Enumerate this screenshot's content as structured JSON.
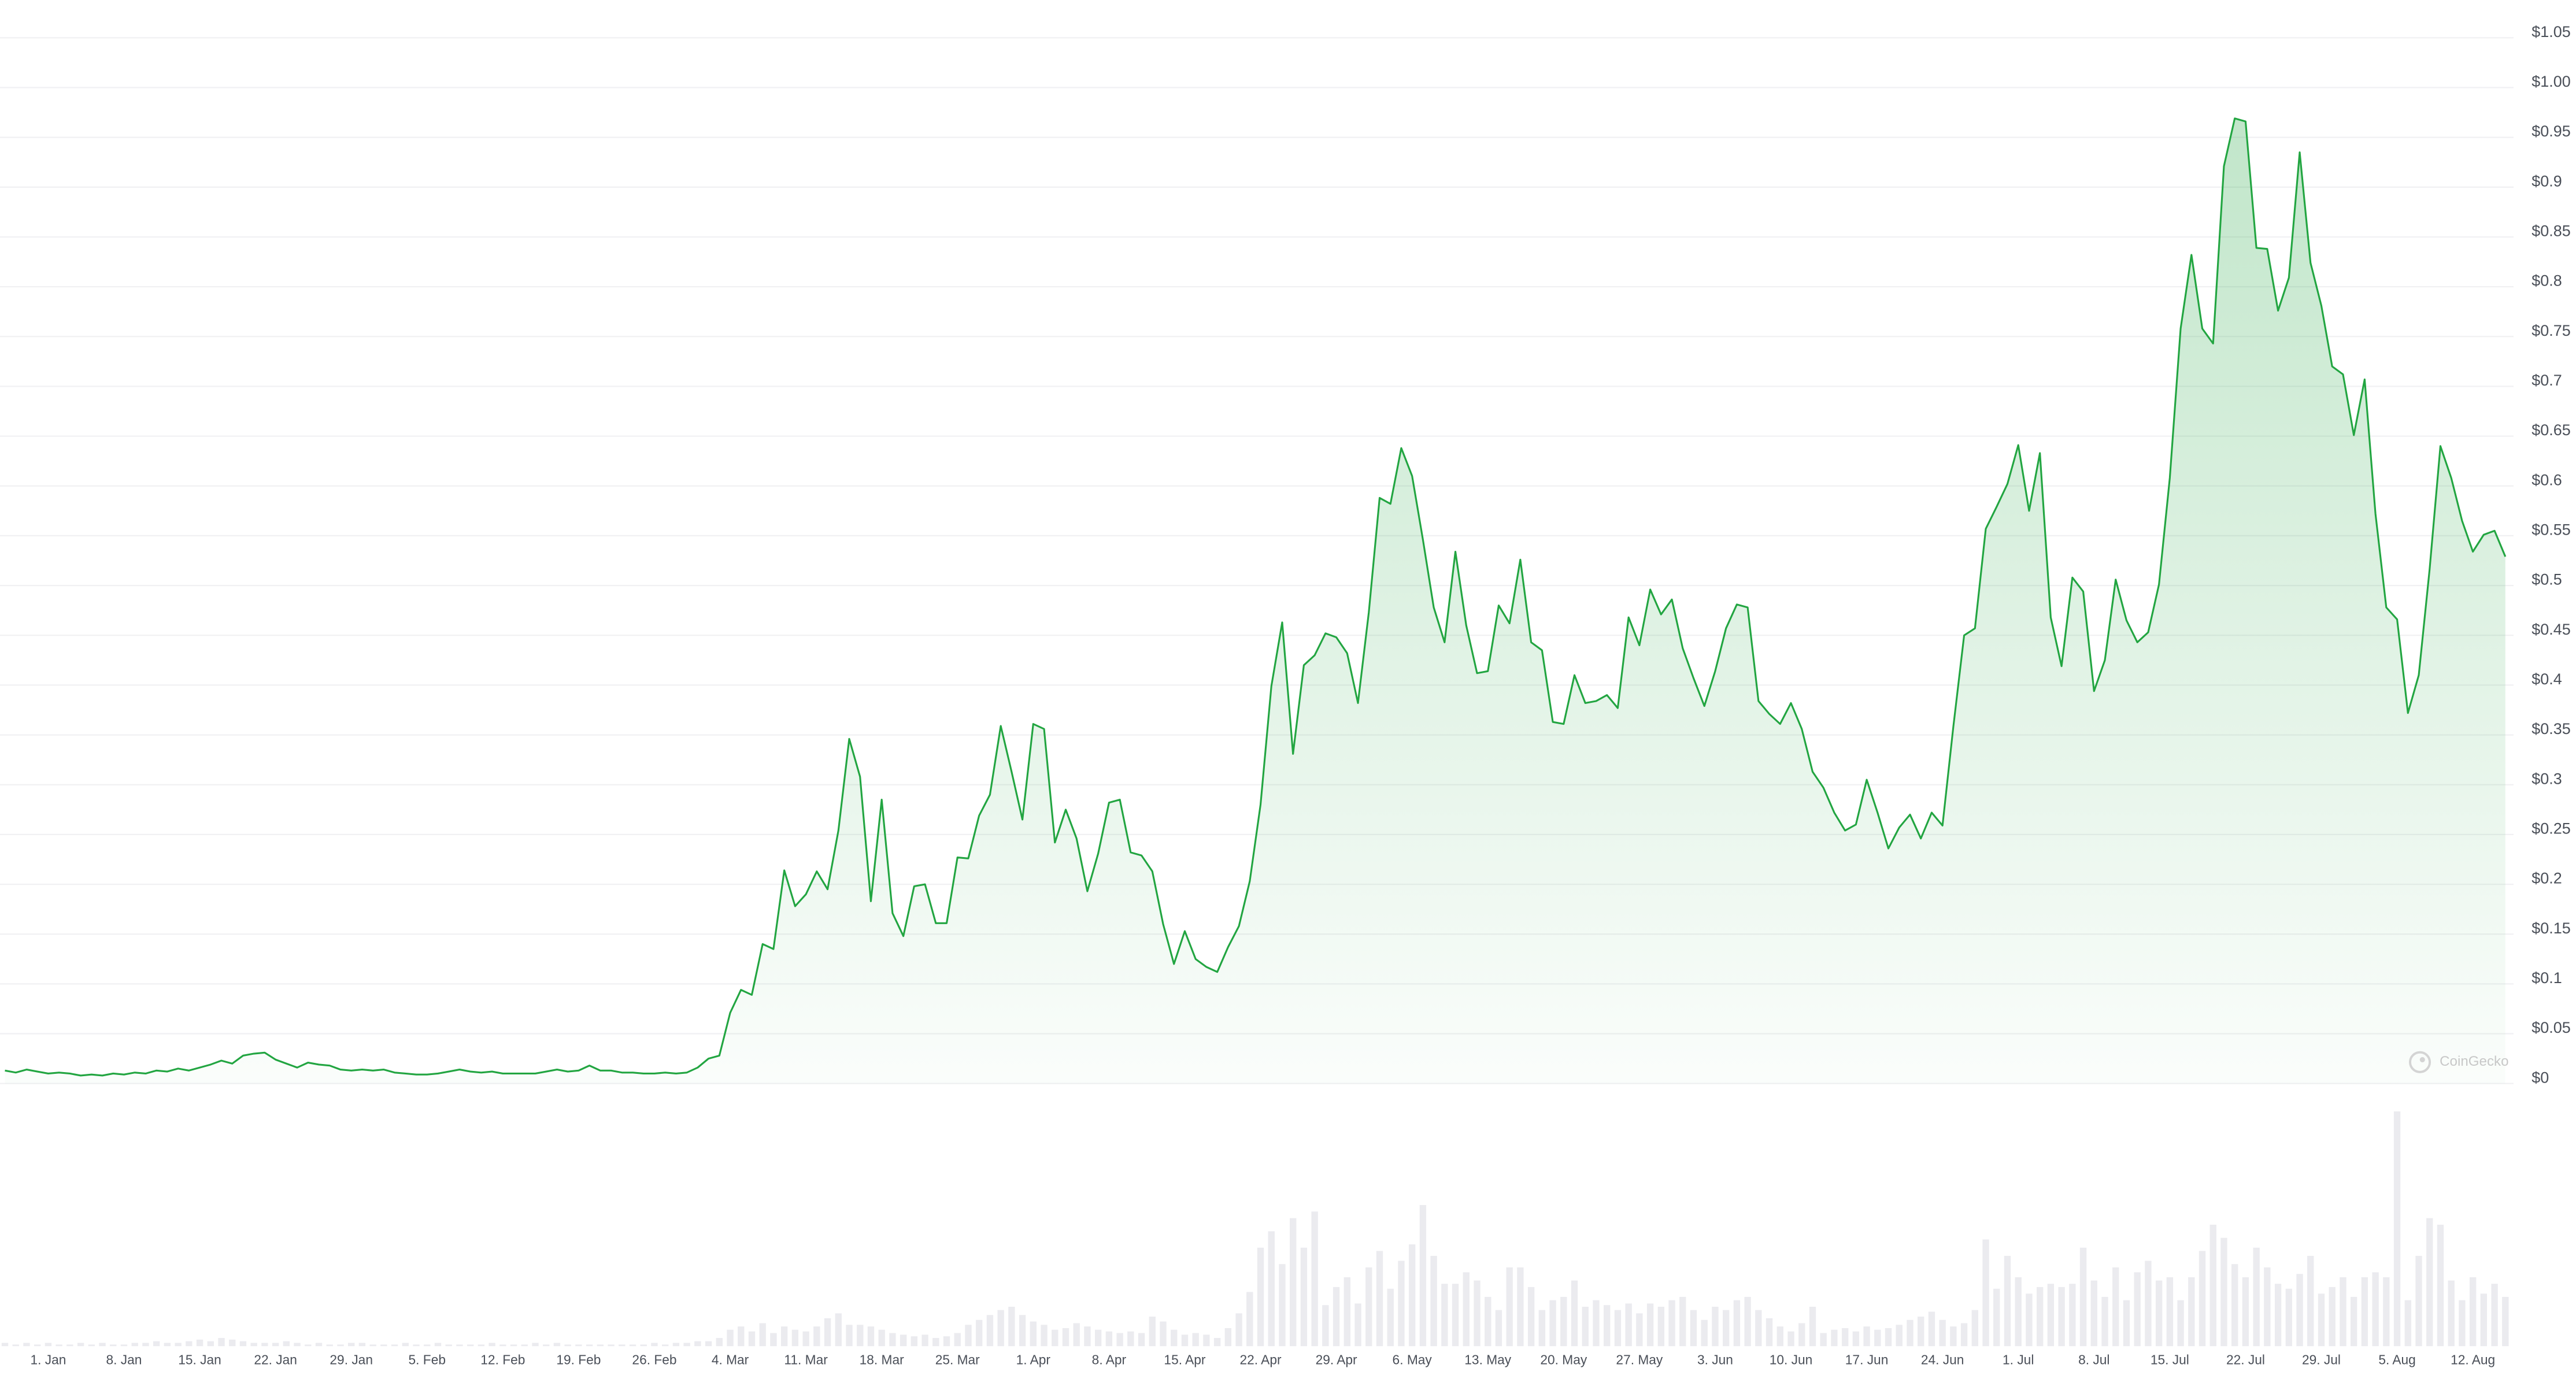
{
  "chart_data": {
    "type": "line",
    "color": "#22a541",
    "volume_color": "#ebebef",
    "grid": true,
    "watermark": "CoinGecko",
    "ylim": [
      0,
      1.05
    ],
    "yticks": [
      {
        "value": 0,
        "label": "$0"
      },
      {
        "value": 0.05,
        "label": "$0.05"
      },
      {
        "value": 0.1,
        "label": "$0.1"
      },
      {
        "value": 0.15,
        "label": "$0.15"
      },
      {
        "value": 0.2,
        "label": "$0.2"
      },
      {
        "value": 0.25,
        "label": "$0.25"
      },
      {
        "value": 0.3,
        "label": "$0.3"
      },
      {
        "value": 0.35,
        "label": "$0.35"
      },
      {
        "value": 0.4,
        "label": "$0.4"
      },
      {
        "value": 0.45,
        "label": "$0.45"
      },
      {
        "value": 0.5,
        "label": "$0.5"
      },
      {
        "value": 0.55,
        "label": "$0.55"
      },
      {
        "value": 0.6,
        "label": "$0.6"
      },
      {
        "value": 0.65,
        "label": "$0.65"
      },
      {
        "value": 0.7,
        "label": "$0.7"
      },
      {
        "value": 0.75,
        "label": "$0.75"
      },
      {
        "value": 0.8,
        "label": "$0.8"
      },
      {
        "value": 0.85,
        "label": "$0.85"
      },
      {
        "value": 0.9,
        "label": "$0.9"
      },
      {
        "value": 0.95,
        "label": "$0.95"
      },
      {
        "value": 1.0,
        "label": "$1.00"
      },
      {
        "value": 1.05,
        "label": "$1.05"
      }
    ],
    "categories": [
      null,
      null,
      null,
      null,
      "1. Jan",
      null,
      null,
      null,
      null,
      null,
      null,
      "8. Jan",
      null,
      null,
      null,
      null,
      null,
      null,
      "15. Jan",
      null,
      null,
      null,
      null,
      null,
      null,
      "22. Jan",
      null,
      null,
      null,
      null,
      null,
      null,
      "29. Jan",
      null,
      null,
      null,
      null,
      null,
      null,
      "5. Feb",
      null,
      null,
      null,
      null,
      null,
      null,
      "12. Feb",
      null,
      null,
      null,
      null,
      null,
      null,
      "19. Feb",
      null,
      null,
      null,
      null,
      null,
      null,
      "26. Feb",
      null,
      null,
      null,
      null,
      null,
      null,
      "4. Mar",
      null,
      null,
      null,
      null,
      null,
      null,
      "11. Mar",
      null,
      null,
      null,
      null,
      null,
      null,
      "18. Mar",
      null,
      null,
      null,
      null,
      null,
      null,
      "25. Mar",
      null,
      null,
      null,
      null,
      null,
      null,
      "1. Apr",
      null,
      null,
      null,
      null,
      null,
      null,
      "8. Apr",
      null,
      null,
      null,
      null,
      null,
      null,
      "15. Apr",
      null,
      null,
      null,
      null,
      null,
      null,
      "22. Apr",
      null,
      null,
      null,
      null,
      null,
      null,
      "29. Apr",
      null,
      null,
      null,
      null,
      null,
      null,
      "6. May",
      null,
      null,
      null,
      null,
      null,
      null,
      "13. May",
      null,
      null,
      null,
      null,
      null,
      null,
      "20. May",
      null,
      null,
      null,
      null,
      null,
      null,
      "27. May",
      null,
      null,
      null,
      null,
      null,
      null,
      "3. Jun",
      null,
      null,
      null,
      null,
      null,
      null,
      "10. Jun",
      null,
      null,
      null,
      null,
      null,
      null,
      "17. Jun",
      null,
      null,
      null,
      null,
      null,
      null,
      "24. Jun",
      null,
      null,
      null,
      null,
      null,
      null,
      "1. Jul",
      null,
      null,
      null,
      null,
      null,
      null,
      "8. Jul",
      null,
      null,
      null,
      null,
      null,
      null,
      "15. Jul",
      null,
      null,
      null,
      null,
      null,
      null,
      "22. Jul",
      null,
      null,
      null,
      null,
      null,
      null,
      "29. Jul",
      null,
      null,
      null,
      null,
      null,
      null,
      "5. Aug",
      null,
      null,
      null,
      null,
      null,
      null,
      "12. Aug",
      null,
      null,
      null
    ],
    "values": [
      0.013,
      0.011,
      0.014,
      0.012,
      0.01,
      0.011,
      0.01,
      0.008,
      0.009,
      0.008,
      0.01,
      0.009,
      0.011,
      0.01,
      0.013,
      0.012,
      0.015,
      0.013,
      0.016,
      0.019,
      0.023,
      0.02,
      0.028,
      0.03,
      0.031,
      0.024,
      0.02,
      0.016,
      0.021,
      0.019,
      0.018,
      0.014,
      0.013,
      0.014,
      0.013,
      0.014,
      0.011,
      0.01,
      0.009,
      0.009,
      0.01,
      0.012,
      0.014,
      0.012,
      0.011,
      0.012,
      0.01,
      0.01,
      0.01,
      0.01,
      0.012,
      0.014,
      0.012,
      0.013,
      0.018,
      0.013,
      0.013,
      0.011,
      0.011,
      0.01,
      0.01,
      0.011,
      0.01,
      0.011,
      0.016,
      0.025,
      0.028,
      0.071,
      0.094,
      0.089,
      0.14,
      0.135,
      0.214,
      0.178,
      0.19,
      0.213,
      0.195,
      0.254,
      0.346,
      0.308,
      0.183,
      0.285,
      0.171,
      0.148,
      0.198,
      0.2,
      0.161,
      0.161,
      0.227,
      0.226,
      0.269,
      0.29,
      0.359,
      0.313,
      0.265,
      0.361,
      0.356,
      0.242,
      0.275,
      0.246,
      0.193,
      0.231,
      0.282,
      0.285,
      0.232,
      0.229,
      0.213,
      0.16,
      0.12,
      0.153,
      0.125,
      0.117,
      0.112,
      0.137,
      0.158,
      0.203,
      0.28,
      0.399,
      0.463,
      0.331,
      0.42,
      0.43,
      0.452,
      0.448,
      0.432,
      0.382,
      0.473,
      0.588,
      0.582,
      0.638,
      0.61,
      0.546,
      0.478,
      0.443,
      0.534,
      0.46,
      0.412,
      0.414,
      0.48,
      0.462,
      0.526,
      0.443,
      0.435,
      0.363,
      0.361,
      0.41,
      0.382,
      0.384,
      0.39,
      0.377,
      0.468,
      0.44,
      0.496,
      0.471,
      0.486,
      0.437,
      0.407,
      0.379,
      0.414,
      0.457,
      0.481,
      0.478,
      0.384,
      0.371,
      0.361,
      0.382,
      0.356,
      0.313,
      0.297,
      0.272,
      0.254,
      0.26,
      0.305,
      0.272,
      0.236,
      0.257,
      0.27,
      0.246,
      0.272,
      0.259,
      0.358,
      0.45,
      0.457,
      0.557,
      0.579,
      0.602,
      0.641,
      0.575,
      0.633,
      0.468,
      0.419,
      0.508,
      0.494,
      0.394,
      0.425,
      0.506,
      0.465,
      0.443,
      0.453,
      0.501,
      0.608,
      0.758,
      0.832,
      0.758,
      0.743,
      0.921,
      0.969,
      0.966,
      0.839,
      0.838,
      0.776,
      0.809,
      0.935,
      0.824,
      0.781,
      0.72,
      0.712,
      0.651,
      0.707,
      0.572,
      0.478,
      0.466,
      0.372,
      0.41,
      0.516,
      0.64,
      0.608,
      0.565,
      0.534,
      0.551,
      0.555,
      0.529
    ],
    "volume": [
      2,
      1,
      2,
      1,
      2,
      1,
      1,
      2,
      1,
      2,
      1,
      1,
      2,
      2,
      3,
      2,
      2,
      3,
      4,
      3,
      5,
      4,
      3,
      2,
      2,
      2,
      3,
      2,
      1,
      2,
      1,
      1,
      2,
      2,
      1,
      1,
      1,
      2,
      1,
      1,
      2,
      1,
      1,
      1,
      1,
      2,
      1,
      1,
      1,
      2,
      1,
      2,
      1,
      1,
      1,
      1,
      1,
      1,
      1,
      1,
      2,
      1,
      2,
      2,
      3,
      3,
      5,
      10,
      12,
      9,
      14,
      8,
      12,
      10,
      9,
      12,
      17,
      20,
      13,
      13,
      12,
      10,
      8,
      7,
      6,
      7,
      5,
      6,
      8,
      13,
      16,
      19,
      22,
      24,
      19,
      15,
      13,
      10,
      11,
      14,
      12,
      10,
      9,
      8,
      9,
      8,
      18,
      15,
      10,
      7,
      8,
      7,
      5,
      11,
      20,
      33,
      60,
      70,
      50,
      78,
      60,
      82,
      25,
      36,
      42,
      26,
      48,
      58,
      35,
      52,
      62,
      86,
      55,
      38,
      38,
      45,
      40,
      30,
      22,
      48,
      48,
      36,
      22,
      28,
      30,
      40,
      24,
      28,
      25,
      22,
      26,
      20,
      26,
      24,
      28,
      30,
      22,
      16,
      24,
      22,
      28,
      30,
      22,
      17,
      12,
      9,
      14,
      24,
      8,
      10,
      11,
      9,
      12,
      10,
      11,
      13,
      16,
      18,
      21,
      16,
      12,
      14,
      22,
      65,
      35,
      55,
      42,
      32,
      36,
      38,
      36,
      38,
      60,
      40,
      30,
      48,
      28,
      45,
      52,
      40,
      42,
      28,
      42,
      58,
      74,
      66,
      50,
      42,
      60,
      48,
      38,
      35,
      44,
      55,
      32,
      36,
      42,
      30,
      42,
      45,
      42,
      143,
      28,
      55,
      78,
      74,
      40,
      28,
      42,
      32,
      38,
      30
    ]
  }
}
